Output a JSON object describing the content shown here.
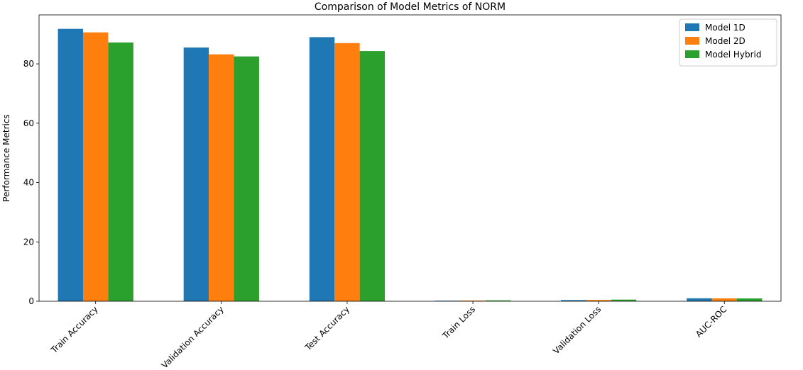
{
  "chart_data": {
    "type": "bar",
    "title": "Comparison of Model Metrics of NORM",
    "xlabel": "",
    "ylabel": "Performance Metrics",
    "ylim": [
      0,
      96.5
    ],
    "yticks": [
      0,
      20,
      40,
      60,
      80
    ],
    "grid": false,
    "legend_position": "top-right",
    "categories": [
      "Train Accuracy",
      "Validation Accuracy",
      "Test Accuracy",
      "Train Loss",
      "Validation Loss",
      "AUC-ROC"
    ],
    "series": [
      {
        "name": "Model 1D",
        "color": "#1f77b4",
        "values": [
          91.8,
          85.5,
          89.0,
          0.2,
          0.4,
          1.0
        ]
      },
      {
        "name": "Model 2D",
        "color": "#ff7f0e",
        "values": [
          90.6,
          83.2,
          87.0,
          0.25,
          0.45,
          0.98
        ]
      },
      {
        "name": "Model Hybrid",
        "color": "#2ca02c",
        "values": [
          87.2,
          82.5,
          84.3,
          0.3,
          0.55,
          0.95
        ]
      }
    ]
  }
}
